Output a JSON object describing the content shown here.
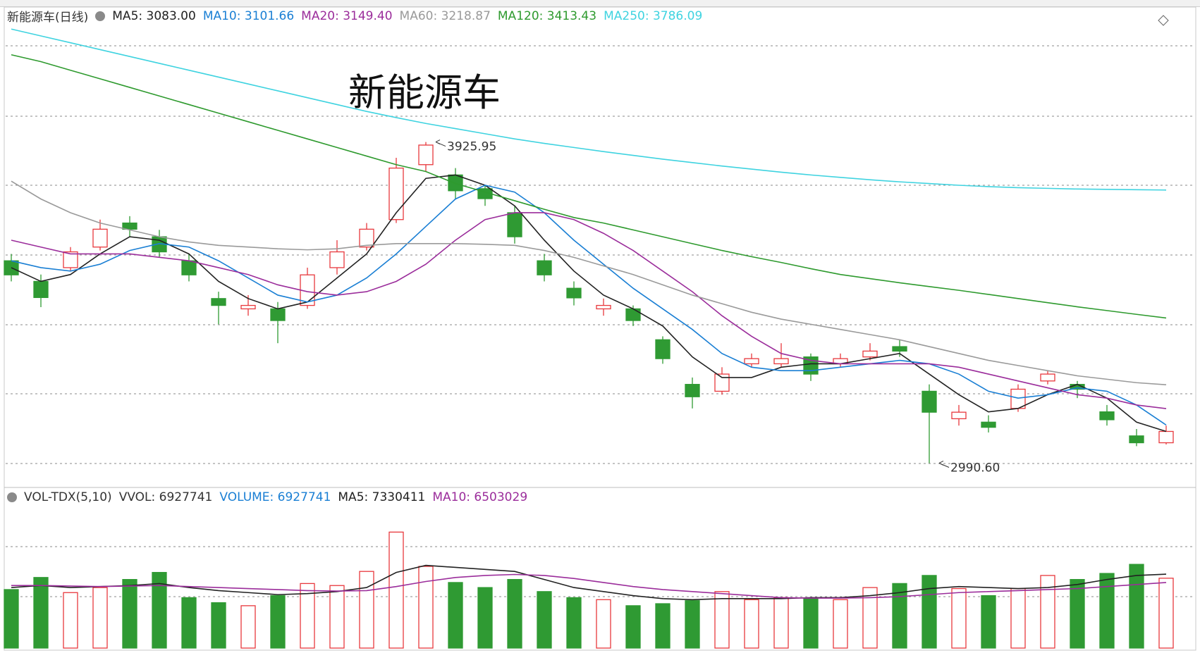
{
  "header": {
    "title": "新能源车(日线)"
  },
  "chart_data": [
    {
      "type": "candlestick",
      "title": "新能源车",
      "open": [
        3580,
        3520,
        3560,
        3620,
        3690,
        3650,
        3580,
        3470,
        3440,
        3440,
        3450,
        3560,
        3620,
        3700,
        3860,
        3830,
        3790,
        3720,
        3580,
        3500,
        3440,
        3440,
        3350,
        3220,
        3200,
        3280,
        3280,
        3300,
        3280,
        3300,
        3330,
        3200,
        3120,
        3110,
        3150,
        3230,
        3220,
        3140,
        3070,
        3050
      ],
      "high": [
        3600,
        3540,
        3620,
        3700,
        3710,
        3670,
        3600,
        3490,
        3480,
        3460,
        3560,
        3640,
        3690,
        3880,
        3925.95,
        3850,
        3800,
        3740,
        3600,
        3520,
        3470,
        3450,
        3360,
        3240,
        3270,
        3310,
        3340,
        3310,
        3310,
        3340,
        3350,
        3220,
        3160,
        3130,
        3220,
        3260,
        3230,
        3160,
        3090,
        3100
      ],
      "low": [
        3520,
        3445,
        3550,
        3610,
        3650,
        3590,
        3520,
        3395,
        3420,
        3340,
        3440,
        3540,
        3610,
        3690,
        3840,
        3760,
        3740,
        3630,
        3520,
        3450,
        3420,
        3390,
        3280,
        3150,
        3190,
        3270,
        3270,
        3230,
        3270,
        3290,
        3300,
        2990.6,
        3100,
        3080,
        3140,
        3220,
        3180,
        3100,
        3040,
        3045
      ],
      "close": [
        3539,
        3473,
        3606,
        3672,
        3672,
        3606,
        3539,
        3450,
        3450,
        3406,
        3539,
        3606,
        3672,
        3850,
        3917,
        3784,
        3761,
        3650,
        3539,
        3472,
        3450,
        3406,
        3295,
        3184,
        3250,
        3295,
        3295,
        3250,
        3295,
        3317,
        3317,
        3139,
        3139,
        3095,
        3206,
        3250,
        3206,
        3117,
        3050,
        3083
      ],
      "up_color": "#e8383d",
      "down_color": "#2f9a33",
      "ylim": [
        2928,
        4317
      ],
      "series": [
        {
          "name": "MA5: 3083.00",
          "color": "#222222",
          "values": [
            3560,
            3520,
            3540,
            3600,
            3650,
            3640,
            3600,
            3520,
            3470,
            3440,
            3460,
            3530,
            3600,
            3720,
            3820,
            3830,
            3800,
            3740,
            3640,
            3550,
            3480,
            3440,
            3390,
            3300,
            3240,
            3240,
            3270,
            3280,
            3280,
            3295,
            3310,
            3250,
            3190,
            3140,
            3150,
            3190,
            3220,
            3180,
            3110,
            3083
          ]
        },
        {
          "name": "MA10: 3101.66",
          "color": "#1a7fd4",
          "values": [
            3580,
            3560,
            3550,
            3570,
            3610,
            3630,
            3620,
            3580,
            3530,
            3480,
            3460,
            3480,
            3530,
            3600,
            3680,
            3760,
            3800,
            3780,
            3720,
            3640,
            3570,
            3500,
            3440,
            3380,
            3310,
            3270,
            3260,
            3260,
            3270,
            3280,
            3290,
            3280,
            3250,
            3200,
            3180,
            3190,
            3210,
            3200,
            3160,
            3101.66
          ]
        },
        {
          "name": "MA20: 3149.40",
          "color": "#9b2d9b",
          "values": [
            3640,
            3620,
            3600,
            3600,
            3600,
            3590,
            3580,
            3560,
            3540,
            3510,
            3490,
            3480,
            3490,
            3520,
            3570,
            3640,
            3700,
            3720,
            3720,
            3700,
            3660,
            3610,
            3550,
            3490,
            3420,
            3360,
            3310,
            3290,
            3280,
            3280,
            3280,
            3280,
            3270,
            3250,
            3230,
            3210,
            3190,
            3180,
            3160,
            3149.4
          ]
        },
        {
          "name": "MA60: 3218.87",
          "color": "#9a9a9a",
          "values": [
            3812,
            3760,
            3720,
            3690,
            3670,
            3650,
            3635,
            3625,
            3620,
            3615,
            3612,
            3615,
            3625,
            3630,
            3630,
            3630,
            3628,
            3625,
            3610,
            3590,
            3565,
            3540,
            3510,
            3480,
            3455,
            3430,
            3410,
            3395,
            3380,
            3365,
            3350,
            3330,
            3310,
            3290,
            3275,
            3260,
            3245,
            3235,
            3225,
            3218.87
          ]
        },
        {
          "name": "MA120: 3413.43",
          "color": "#2e9a2e",
          "values": [
            4180,
            4160,
            4135,
            4110,
            4085,
            4060,
            4035,
            4010,
            3985,
            3960,
            3935,
            3910,
            3885,
            3860,
            3840,
            3805,
            3780,
            3755,
            3730,
            3706,
            3690,
            3670,
            3650,
            3630,
            3610,
            3592,
            3575,
            3557,
            3540,
            3528,
            3516,
            3505,
            3494,
            3482,
            3470,
            3458,
            3446,
            3435,
            3424,
            3413.43
          ]
        },
        {
          "name": "MA250: 3786.09",
          "color": "#3fd3e0",
          "values": [
            4255,
            4235,
            4215,
            4195,
            4175,
            4155,
            4135,
            4115,
            4095,
            4075,
            4055,
            4035,
            4015,
            3997,
            3980,
            3965,
            3950,
            3935,
            3922,
            3910,
            3898,
            3887,
            3876,
            3866,
            3856,
            3847,
            3838,
            3830,
            3823,
            3816,
            3810,
            3805,
            3800,
            3796,
            3793,
            3791,
            3789,
            3788,
            3787,
            3786.09
          ]
        }
      ],
      "annotations": [
        {
          "text": "3925.95",
          "value": 3925.95
        },
        {
          "text": "2990.60",
          "value": 2990.6
        }
      ]
    },
    {
      "type": "volume",
      "title": "VOL-TDX(5,10)",
      "vvol_label": "VVOL: 6927741",
      "name": "VOLUME: 6927741",
      "name_color": "#1a7fd4",
      "values": [
        5800000,
        7000000,
        5500000,
        6000000,
        6800000,
        7500000,
        5000000,
        4500000,
        4200000,
        5200000,
        6400000,
        6200000,
        7600000,
        11500000,
        8100000,
        6500000,
        6000000,
        6800000,
        5600000,
        5000000,
        4800000,
        4200000,
        4400000,
        4700000,
        5600000,
        4800000,
        5000000,
        4900000,
        4800000,
        6000000,
        6400000,
        7200000,
        5900000,
        5200000,
        5900000,
        7200000,
        6800000,
        7400000,
        8300000,
        6927741
      ],
      "ylim": [
        0,
        13900000
      ],
      "series": [
        {
          "name": "MA5: 7330411",
          "color": "#222222",
          "values": [
            6000000,
            6200000,
            6000000,
            6100000,
            6200000,
            6400000,
            6000000,
            5700000,
            5500000,
            5300000,
            5400000,
            5600000,
            6000000,
            7500000,
            8200000,
            8000000,
            7800000,
            7600000,
            6800000,
            6000000,
            5600000,
            5200000,
            4900000,
            4800000,
            4900000,
            4900000,
            4900000,
            5000000,
            5000000,
            5200000,
            5500000,
            5900000,
            6100000,
            6000000,
            5900000,
            6000000,
            6300000,
            6800000,
            7200000,
            7330411
          ]
        },
        {
          "name": "MA10: 6503029",
          "color": "#9b2d9b",
          "values": [
            6200000,
            6200000,
            6150000,
            6100000,
            6150000,
            6200000,
            6100000,
            6000000,
            5900000,
            5800000,
            5700000,
            5650000,
            5700000,
            6100000,
            6600000,
            7000000,
            7200000,
            7300000,
            7200000,
            6900000,
            6500000,
            6100000,
            5800000,
            5600000,
            5400000,
            5200000,
            5000000,
            4950000,
            4950000,
            5000000,
            5100000,
            5300000,
            5500000,
            5600000,
            5700000,
            5800000,
            5900000,
            6100000,
            6300000,
            6503029
          ]
        }
      ]
    }
  ]
}
